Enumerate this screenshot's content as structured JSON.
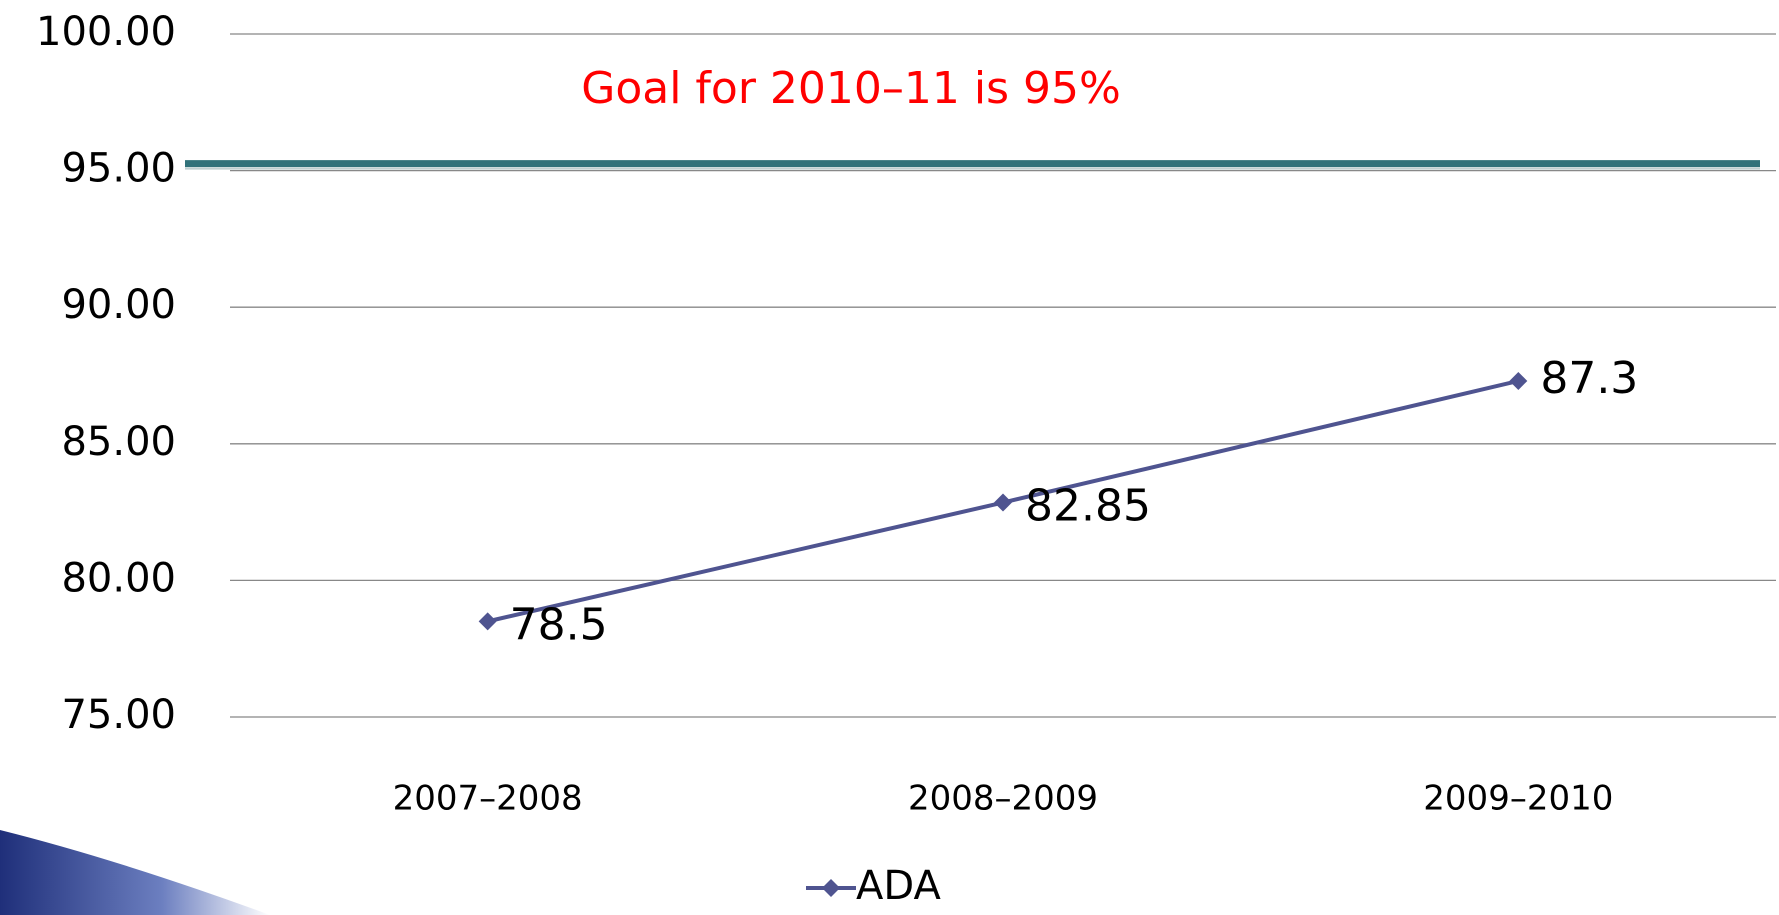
{
  "chart_data": {
    "type": "line",
    "annotation": "Goal for 2010–11 is 95%",
    "annotation_color": "#ff0000",
    "goal_line": {
      "value": 95,
      "color": "#31727a"
    },
    "categories": [
      "2007–2008",
      "2008–2009",
      "2009–2010"
    ],
    "series": [
      {
        "name": "ADA",
        "color": "#4f5490",
        "values": [
          78.5,
          82.85,
          87.3
        ]
      }
    ],
    "ylim": [
      75,
      100
    ],
    "yticks": [
      {
        "value": 75,
        "label": "75.00"
      },
      {
        "value": 80,
        "label": "80.00"
      },
      {
        "value": 85,
        "label": "85.00"
      },
      {
        "value": 90,
        "label": "90.00"
      },
      {
        "value": 95,
        "label": "95.00"
      },
      {
        "value": 100,
        "label": "100.00"
      }
    ],
    "grid": true,
    "legend": "bottom"
  }
}
